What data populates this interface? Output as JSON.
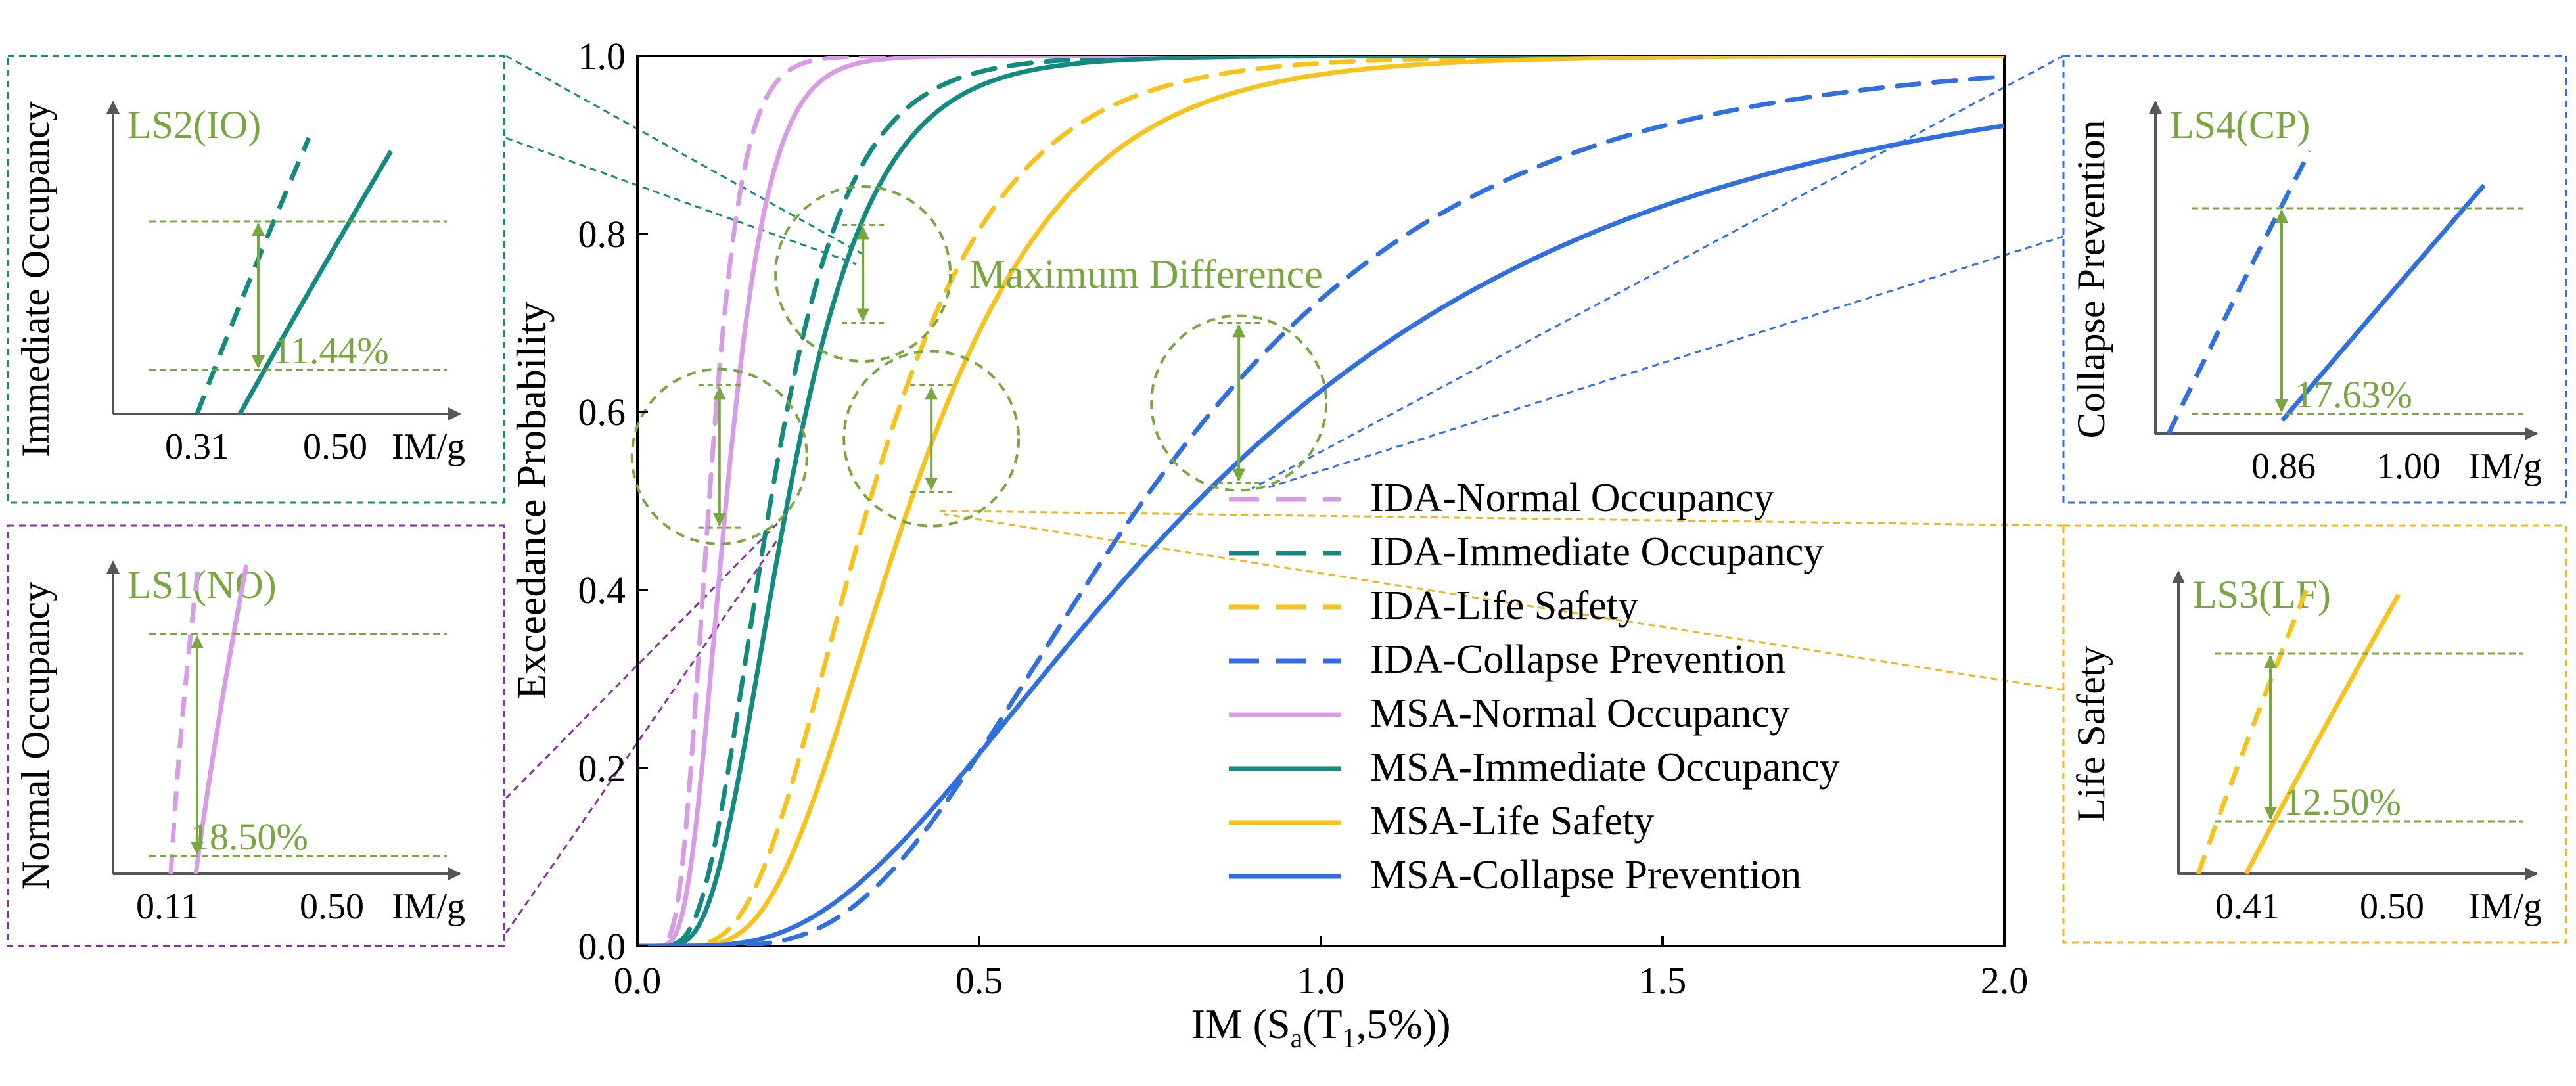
{
  "colors": {
    "no": "#d79be8",
    "io": "#138a7f",
    "ls": "#f7c21b",
    "cp": "#2f6fe0",
    "annot": "#78a73f",
    "box_io": "#138a7f",
    "box_no": "#8b2fa0",
    "box_cp": "#2f6fe0",
    "box_ls": "#f0b51c"
  },
  "chart_data": [
    {
      "type": "line",
      "xlabel_parts": [
        "IM (S",
        "a",
        "(T",
        "1",
        ",5%))"
      ],
      "ylabel": "Exceedance Probability",
      "xlim": [
        0,
        2
      ],
      "ylim": [
        0,
        1
      ],
      "xticks": [
        "0.0",
        "0.5",
        "1.0",
        "1.5",
        "2.0"
      ],
      "yticks": [
        "0.0",
        "0.2",
        "0.4",
        "0.6",
        "0.8",
        "1.0"
      ],
      "grid": false,
      "legend_position": "lower-right",
      "annotation": "Maximum Difference",
      "series": [
        {
          "name": "IDA-Normal Occupancy",
          "key": "no",
          "dash": true,
          "median": 0.105,
          "beta": 0.35
        },
        {
          "name": "IDA-Immediate Occupancy",
          "key": "io",
          "dash": true,
          "median": 0.195,
          "beta": 0.45
        },
        {
          "name": "IDA-Life Safety",
          "key": "ls",
          "dash": true,
          "median": 0.34,
          "beta": 0.45
        },
        {
          "name": "IDA-Collapse Prevention",
          "key": "cp",
          "dash": true,
          "median": 0.74,
          "beta": 0.5
        },
        {
          "name": "MSA-Normal Occupancy",
          "key": "no",
          "dash": false,
          "median": 0.13,
          "beta": 0.38
        },
        {
          "name": "MSA-Immediate Occupancy",
          "key": "io",
          "dash": false,
          "median": 0.22,
          "beta": 0.45
        },
        {
          "name": "MSA-Life Safety",
          "key": "ls",
          "dash": false,
          "median": 0.4,
          "beta": 0.45
        },
        {
          "name": "MSA-Collapse Prevention",
          "key": "cp",
          "dash": false,
          "median": 0.82,
          "beta": 0.63
        }
      ],
      "max_difference": [
        {
          "key": "no",
          "x": 0.12,
          "y_top": 0.63,
          "y_bottom": 0.47
        },
        {
          "key": "io",
          "x": 0.33,
          "y_top": 0.81,
          "y_bottom": 0.7
        },
        {
          "key": "ls",
          "x": 0.43,
          "y_top": 0.63,
          "y_bottom": 0.51
        },
        {
          "key": "cp",
          "x": 0.88,
          "y_top": 0.7,
          "y_bottom": 0.52
        }
      ]
    }
  ],
  "insets": [
    {
      "id": "io",
      "title": "LS2(IO)",
      "ylabel": "Immediate Occupancy",
      "xticks": [
        "0.31",
        "0.50"
      ],
      "xunit": "IM/g",
      "diff": "11.44%"
    },
    {
      "id": "no",
      "title": "LS1(NO)",
      "ylabel": "Normal Occupancy",
      "xticks": [
        "0.11",
        "0.50"
      ],
      "xunit": "IM/g",
      "diff": "18.50%"
    },
    {
      "id": "cp",
      "title": "LS4(CP)",
      "ylabel": "Collapse Prevention",
      "xticks": [
        "0.86",
        "1.00"
      ],
      "xunit": "IM/g",
      "diff": "17.63%"
    },
    {
      "id": "ls",
      "title": "LS3(LF)",
      "ylabel": "Life Safety",
      "xticks": [
        "0.41",
        "0.50"
      ],
      "xunit": "IM/g",
      "diff": "12.50%"
    }
  ]
}
